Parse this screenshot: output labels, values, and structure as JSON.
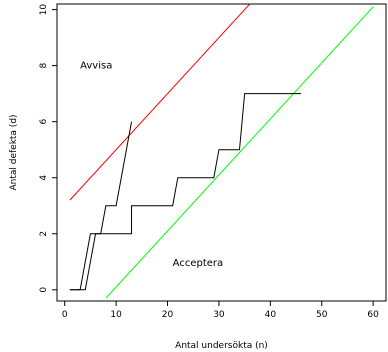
{
  "chart_data": {
    "type": "line",
    "xlabel": "Antal undersökta (n)",
    "ylabel": "Antal defekta (d)",
    "xlim": [
      -1.5,
      62.5
    ],
    "ylim": [
      -0.4,
      10.2
    ],
    "x_ticks": [
      0,
      10,
      20,
      30,
      40,
      50,
      60
    ],
    "y_ticks": [
      0,
      2,
      4,
      6,
      8,
      10
    ],
    "grid": false,
    "annotations": [
      {
        "text": "Avvisa",
        "x": 3.0,
        "y": 7.9
      },
      {
        "text": "Acceptera",
        "x": 21.0,
        "y": 0.85
      }
    ],
    "series": [
      {
        "color": "#ff0000",
        "kind": "line",
        "x": [
          1,
          37
        ],
        "y": [
          3.2,
          10.4
        ]
      },
      {
        "color": "#00ff00",
        "kind": "line",
        "x": [
          8,
          60
        ],
        "y": [
          -0.3,
          10.1
        ]
      },
      {
        "color": "#000000",
        "kind": "path",
        "x": [
          1,
          4,
          6,
          13,
          13,
          21,
          22,
          29,
          30,
          34,
          35,
          46
        ],
        "y": [
          0,
          0,
          2,
          2,
          3,
          3,
          4,
          4,
          5,
          5,
          7,
          7
        ]
      },
      {
        "color": "#000000",
        "kind": "path",
        "x": [
          1,
          3,
          5,
          7,
          8,
          10,
          11,
          13
        ],
        "y": [
          0,
          0,
          2,
          2,
          3,
          3,
          4,
          6
        ]
      }
    ]
  }
}
